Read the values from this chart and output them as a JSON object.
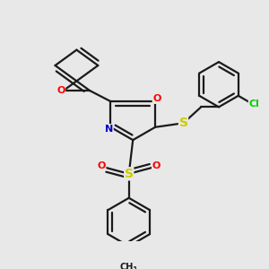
{
  "bg_color": "#e8e8e8",
  "bond_color": "#1a1a1a",
  "bond_width": 1.6,
  "atom_colors": {
    "O": "#ff0000",
    "N": "#0000cc",
    "S": "#cccc00",
    "Cl": "#00cc00"
  },
  "fig_width": 3.0,
  "fig_height": 3.0,
  "dpi": 100
}
